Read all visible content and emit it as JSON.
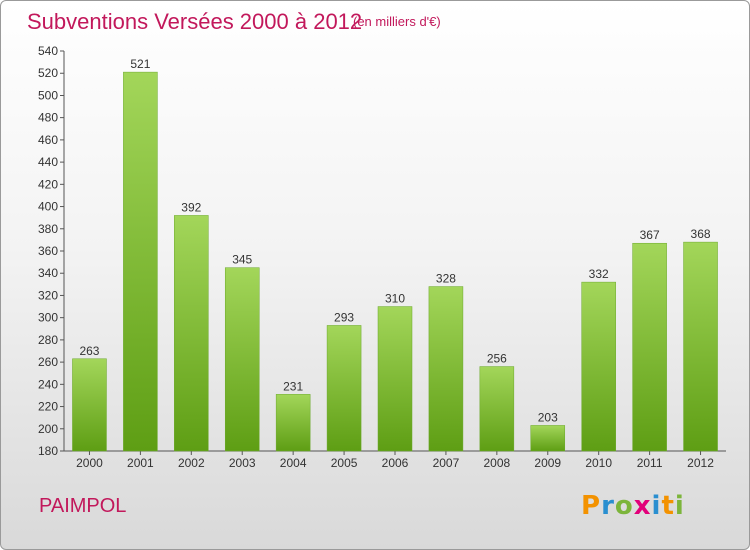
{
  "header": {
    "title": "Subventions Versées 2000 à 2012",
    "subtitle": "(en milliers d'€)"
  },
  "footer": {
    "commune": "PAIMPOL",
    "logo": [
      "P",
      "r",
      "o",
      "x",
      "i",
      "t",
      "i"
    ]
  },
  "colors": {
    "bar_top": "#a3d65a",
    "bar_bottom": "#5e9e14",
    "title": "#c2185b"
  },
  "chart_data": {
    "type": "bar",
    "title": "Subventions Versées 2000 à 2012",
    "subtitle": "(en milliers d'€)",
    "categories": [
      "2000",
      "2001",
      "2002",
      "2003",
      "2004",
      "2005",
      "2006",
      "2007",
      "2008",
      "2009",
      "2010",
      "2011",
      "2012"
    ],
    "values": [
      263,
      521,
      392,
      345,
      231,
      293,
      310,
      328,
      256,
      203,
      332,
      367,
      368
    ],
    "ylim": [
      180,
      540
    ],
    "ystep": 20,
    "grid": false,
    "legend": "none"
  }
}
